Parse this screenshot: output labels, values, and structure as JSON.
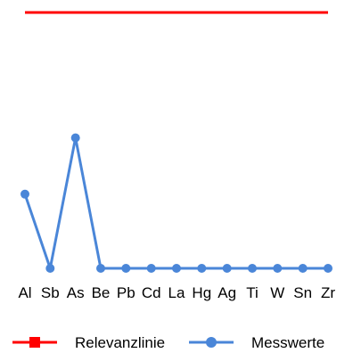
{
  "chart_data": {
    "type": "line",
    "title": "",
    "xlabel": "",
    "ylabel": "",
    "categories": [
      "Al",
      "Sb",
      "As",
      "Be",
      "Pb",
      "Cd",
      "La",
      "Hg",
      "Ag",
      "Ti",
      "W",
      "Sn",
      "Zr"
    ],
    "series": [
      {
        "name": "Relevanzlinie",
        "color": "#ff0000",
        "marker": "square",
        "values": [
          1,
          1,
          1,
          1,
          1,
          1,
          1,
          1,
          1,
          1,
          1,
          1,
          1
        ]
      },
      {
        "name": "Messwerte",
        "color": "#4a86d8",
        "marker": "circle",
        "values": [
          0.29,
          0.0,
          0.51,
          0.0,
          0.0,
          0.0,
          0.0,
          0.0,
          0.0,
          0.0,
          0.0,
          0.0,
          0.0
        ]
      }
    ],
    "ylim": [
      0,
      1
    ],
    "grid": false,
    "legend": "bottom"
  }
}
